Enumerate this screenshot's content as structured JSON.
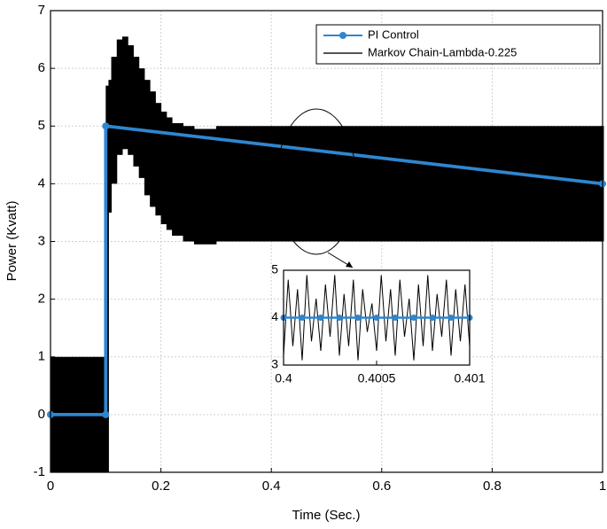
{
  "chart_data": [
    {
      "type": "line",
      "xlabel": "Time (Sec.)",
      "ylabel": "Power (Kvatt)",
      "xlim": [
        0,
        1
      ],
      "xticks": [
        0,
        0.2,
        0.4,
        0.6,
        0.8,
        1
      ],
      "ylim": [
        -1,
        7
      ],
      "yticks": [
        -1,
        0,
        1,
        2,
        3,
        4,
        5,
        6,
        7
      ],
      "grid": true,
      "legend": "upper right",
      "series": [
        {
          "name": "PI Control",
          "color": "#2f86cf",
          "marker": "circle",
          "x": [
            0,
            0.1,
            0.1,
            1
          ],
          "values": [
            0,
            0,
            5,
            4
          ]
        },
        {
          "name": "Markov Chain-Lambda-0.225",
          "color": "#000000",
          "x": [
            0,
            0.02,
            0.04,
            0.06,
            0.08,
            0.1,
            0.105,
            0.11,
            0.12,
            0.13,
            0.14,
            0.15,
            0.16,
            0.17,
            0.18,
            0.19,
            0.2,
            0.21,
            0.22,
            0.24,
            0.26,
            0.28,
            0.3,
            0.4,
            0.5,
            0.6,
            0.7,
            0.8,
            0.9,
            1
          ],
          "max": [
            1,
            1,
            1,
            1,
            1,
            5.7,
            5.8,
            6.2,
            6.5,
            6.55,
            6.4,
            6.2,
            6.0,
            5.8,
            5.6,
            5.4,
            5.25,
            5.15,
            5.05,
            5.0,
            4.95,
            4.95,
            5,
            5,
            5,
            5,
            5,
            5,
            5,
            5
          ],
          "min": [
            -1,
            -1,
            -1,
            -1,
            -1,
            -1,
            3.5,
            4.0,
            4.5,
            4.6,
            4.5,
            4.3,
            4.1,
            3.8,
            3.6,
            3.45,
            3.3,
            3.2,
            3.1,
            3.0,
            2.95,
            2.95,
            3,
            3,
            3,
            3,
            3,
            3,
            3,
            3
          ]
        }
      ]
    },
    {
      "type": "line",
      "xlim": [
        0.4,
        0.401
      ],
      "xticks": [
        0.4,
        0.4005,
        0.401
      ],
      "ylim": [
        3,
        5
      ],
      "yticks": [
        3,
        4,
        5
      ],
      "series": [
        {
          "color": "#000000",
          "x": [
            0.4,
            0.400025,
            0.40005,
            0.400075,
            0.4001,
            0.400125,
            0.40015,
            0.400175,
            0.4002,
            0.400225,
            0.40025,
            0.400275,
            0.4003,
            0.400325,
            0.40035,
            0.400375,
            0.4004,
            0.400425,
            0.40045,
            0.400475,
            0.4005,
            0.400525,
            0.40055,
            0.400575,
            0.4006,
            0.400625,
            0.40065,
            0.400675,
            0.4007,
            0.400725,
            0.40075,
            0.400775,
            0.4008,
            0.400825,
            0.40085,
            0.400875,
            0.4009,
            0.400925,
            0.40095,
            0.400975,
            0.401
          ],
          "values": [
            3.2,
            4.8,
            3.4,
            4.6,
            3.1,
            4.9,
            3.5,
            4.4,
            3.3,
            4.7,
            3.6,
            4.9,
            3.2,
            4.5,
            3.4,
            4.8,
            3.1,
            4.6,
            3.7,
            4.3,
            3.3,
            4.9,
            3.5,
            4.6,
            3.2,
            4.8,
            3.6,
            4.4,
            3.1,
            4.7,
            3.4,
            4.9,
            3.3,
            4.5,
            3.6,
            4.8,
            3.2,
            4.6,
            3.5,
            4.7,
            3.4
          ]
        },
        {
          "color": "#2f86cf",
          "marker": "circle",
          "x": [
            0.4,
            0.4001,
            0.4002,
            0.4003,
            0.4004,
            0.4005,
            0.4006,
            0.4007,
            0.4008,
            0.4009,
            0.401
          ],
          "values": [
            4,
            4,
            4,
            4,
            4,
            4,
            4,
            4,
            4,
            4,
            4
          ]
        }
      ]
    }
  ]
}
